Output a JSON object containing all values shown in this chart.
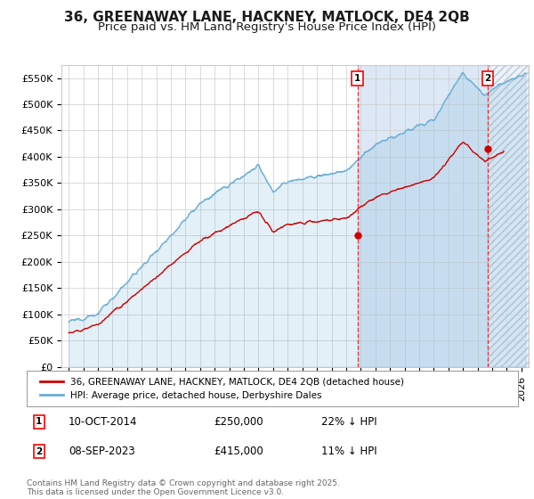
{
  "title": "36, GREENAWAY LANE, HACKNEY, MATLOCK, DE4 2QB",
  "subtitle": "Price paid vs. HM Land Registry's House Price Index (HPI)",
  "ylim": [
    0,
    575000
  ],
  "xlim_start": 1994.5,
  "xlim_end": 2026.5,
  "yticks": [
    0,
    50000,
    100000,
    150000,
    200000,
    250000,
    300000,
    350000,
    400000,
    450000,
    500000,
    550000
  ],
  "ytick_labels": [
    "£0",
    "£50K",
    "£100K",
    "£150K",
    "£200K",
    "£250K",
    "£300K",
    "£350K",
    "£400K",
    "£450K",
    "£500K",
    "£550K"
  ],
  "xtick_years": [
    1995,
    1996,
    1997,
    1998,
    1999,
    2000,
    2001,
    2002,
    2003,
    2004,
    2005,
    2006,
    2007,
    2008,
    2009,
    2010,
    2011,
    2012,
    2013,
    2014,
    2015,
    2016,
    2017,
    2018,
    2019,
    2020,
    2021,
    2022,
    2023,
    2024,
    2025,
    2026
  ],
  "hpi_color": "#6baed6",
  "price_color": "#cc0000",
  "sale1_x": 2014.77,
  "sale1_y": 250000,
  "sale2_x": 2023.68,
  "sale2_y": 415000,
  "legend_house": "36, GREENAWAY LANE, HACKNEY, MATLOCK, DE4 2QB (detached house)",
  "legend_hpi": "HPI: Average price, detached house, Derbyshire Dales",
  "note1_label": "1",
  "note1_date": "10-OCT-2014",
  "note1_price": "£250,000",
  "note1_hpi": "22% ↓ HPI",
  "note2_label": "2",
  "note2_date": "08-SEP-2023",
  "note2_price": "£415,000",
  "note2_hpi": "11% ↓ HPI",
  "footer": "Contains HM Land Registry data © Crown copyright and database right 2025.\nThis data is licensed under the Open Government Licence v3.0.",
  "bg_color": "#ffffff",
  "plot_bg_color": "#ffffff",
  "grid_color": "#cccccc",
  "hatch_bg_color": "#dce8f5",
  "title_fontsize": 11,
  "subtitle_fontsize": 9.5,
  "axis_fontsize": 8
}
